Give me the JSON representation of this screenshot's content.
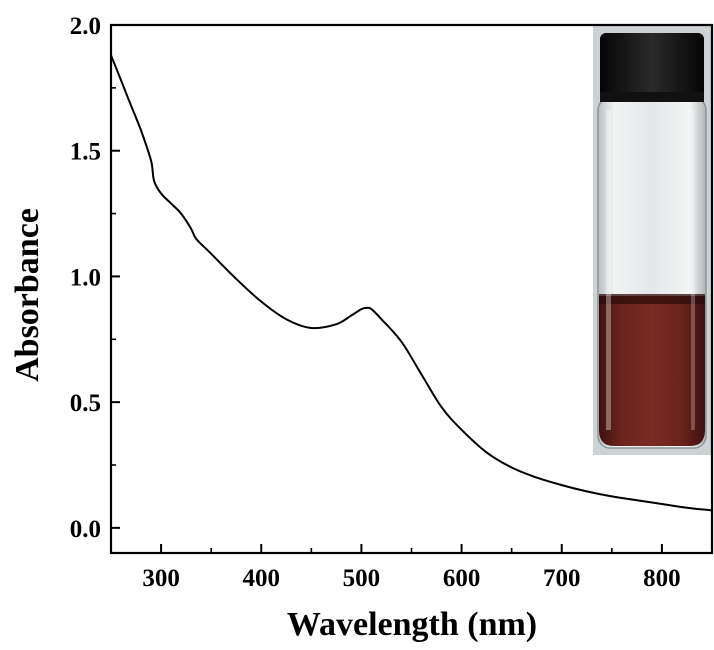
{
  "chart_data": {
    "type": "line",
    "xlabel": "Wavelength (nm)",
    "ylabel": "Absorbance",
    "xlim": [
      250,
      850
    ],
    "ylim": [
      -0.1,
      2.0
    ],
    "xticks": [
      300,
      400,
      500,
      600,
      700,
      800
    ],
    "xtick_labels": [
      "300",
      "400",
      "500",
      "600",
      "700",
      "800"
    ],
    "yticks": [
      0.0,
      0.5,
      1.0,
      1.5,
      2.0
    ],
    "ytick_labels": [
      "0.0",
      "0.5",
      "1.0",
      "1.5",
      "2.0"
    ],
    "grid": false,
    "inset": "photo of capped glass vial containing dark red solution",
    "series": [
      {
        "color": "#000000",
        "x": [
          250,
          260,
          270,
          280,
          290,
          293,
          300,
          310,
          320,
          330,
          335,
          350,
          375,
          400,
          425,
          450,
          475,
          490,
          500,
          505,
          510,
          520,
          540,
          560,
          580,
          600,
          625,
          650,
          675,
          700,
          725,
          750,
          775,
          800,
          825,
          850
        ],
        "y": [
          1.88,
          1.78,
          1.68,
          1.58,
          1.46,
          1.38,
          1.33,
          1.29,
          1.25,
          1.19,
          1.15,
          1.09,
          0.99,
          0.9,
          0.83,
          0.795,
          0.81,
          0.845,
          0.87,
          0.875,
          0.87,
          0.83,
          0.74,
          0.61,
          0.48,
          0.39,
          0.3,
          0.24,
          0.2,
          0.17,
          0.145,
          0.125,
          0.11,
          0.095,
          0.08,
          0.07
        ]
      }
    ]
  }
}
